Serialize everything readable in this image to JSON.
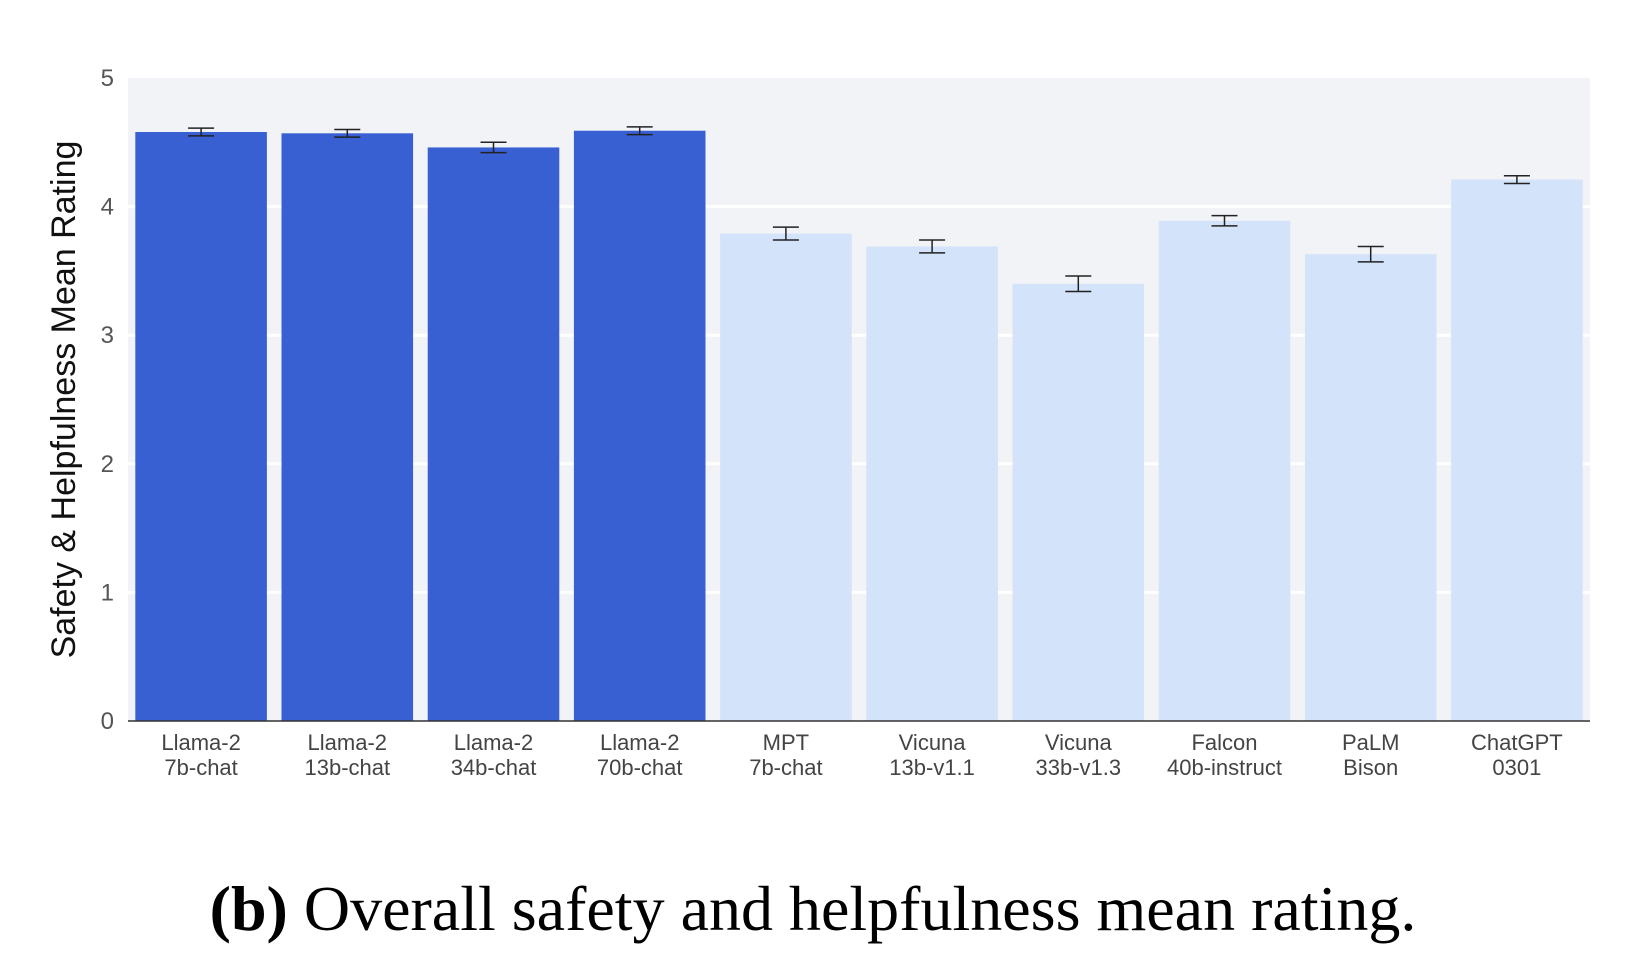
{
  "caption": {
    "tag": "(b)",
    "text": "Overall safety and helpfulness mean rating."
  },
  "chart_data": {
    "type": "bar",
    "ylabel": "Safety & Helpfulness Mean Rating",
    "ylim": [
      0,
      5
    ],
    "yticks": [
      0,
      1,
      2,
      3,
      4,
      5
    ],
    "grid": true,
    "categories": [
      [
        "Llama-2",
        "7b-chat"
      ],
      [
        "Llama-2",
        "13b-chat"
      ],
      [
        "Llama-2",
        "34b-chat"
      ],
      [
        "Llama-2",
        "70b-chat"
      ],
      [
        "MPT",
        "7b-chat"
      ],
      [
        "Vicuna",
        "13b-v1.1"
      ],
      [
        "Vicuna",
        "33b-v1.3"
      ],
      [
        "Falcon",
        "40b-instruct"
      ],
      [
        "PaLM",
        "Bison"
      ],
      [
        "ChatGPT",
        "0301"
      ]
    ],
    "values": [
      4.58,
      4.57,
      4.46,
      4.59,
      3.79,
      3.69,
      3.4,
      3.89,
      3.63,
      4.21
    ],
    "error": [
      0.03,
      0.03,
      0.04,
      0.03,
      0.05,
      0.05,
      0.06,
      0.04,
      0.06,
      0.03
    ],
    "colors": [
      "#3860d2",
      "#3860d2",
      "#3860d2",
      "#3860d2",
      "#d2e3fa",
      "#d2e3fa",
      "#d2e3fa",
      "#d2e3fa",
      "#d2e3fa",
      "#d2e3fa"
    ],
    "plot_background": "#f2f3f7",
    "grid_color": "#ffffff"
  }
}
